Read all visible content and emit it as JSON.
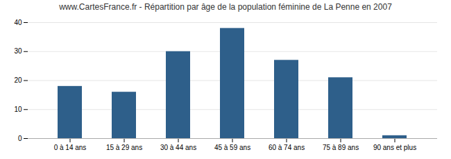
{
  "chart_data": {
    "type": "bar",
    "title": "www.CartesFrance.fr - Répartition par âge de la population féminine de La Penne en 2007",
    "categories": [
      "0 à 14 ans",
      "15 à 29 ans",
      "30 à 44 ans",
      "45 à 59 ans",
      "60 à 74 ans",
      "75 à 89 ans",
      "90 ans et plus"
    ],
    "values": [
      18,
      16,
      30,
      38,
      27,
      21,
      1
    ],
    "color": "#2e5f8a",
    "ylim": [
      0,
      40
    ],
    "yticks": [
      0,
      10,
      20,
      30,
      40
    ],
    "grid": true
  }
}
